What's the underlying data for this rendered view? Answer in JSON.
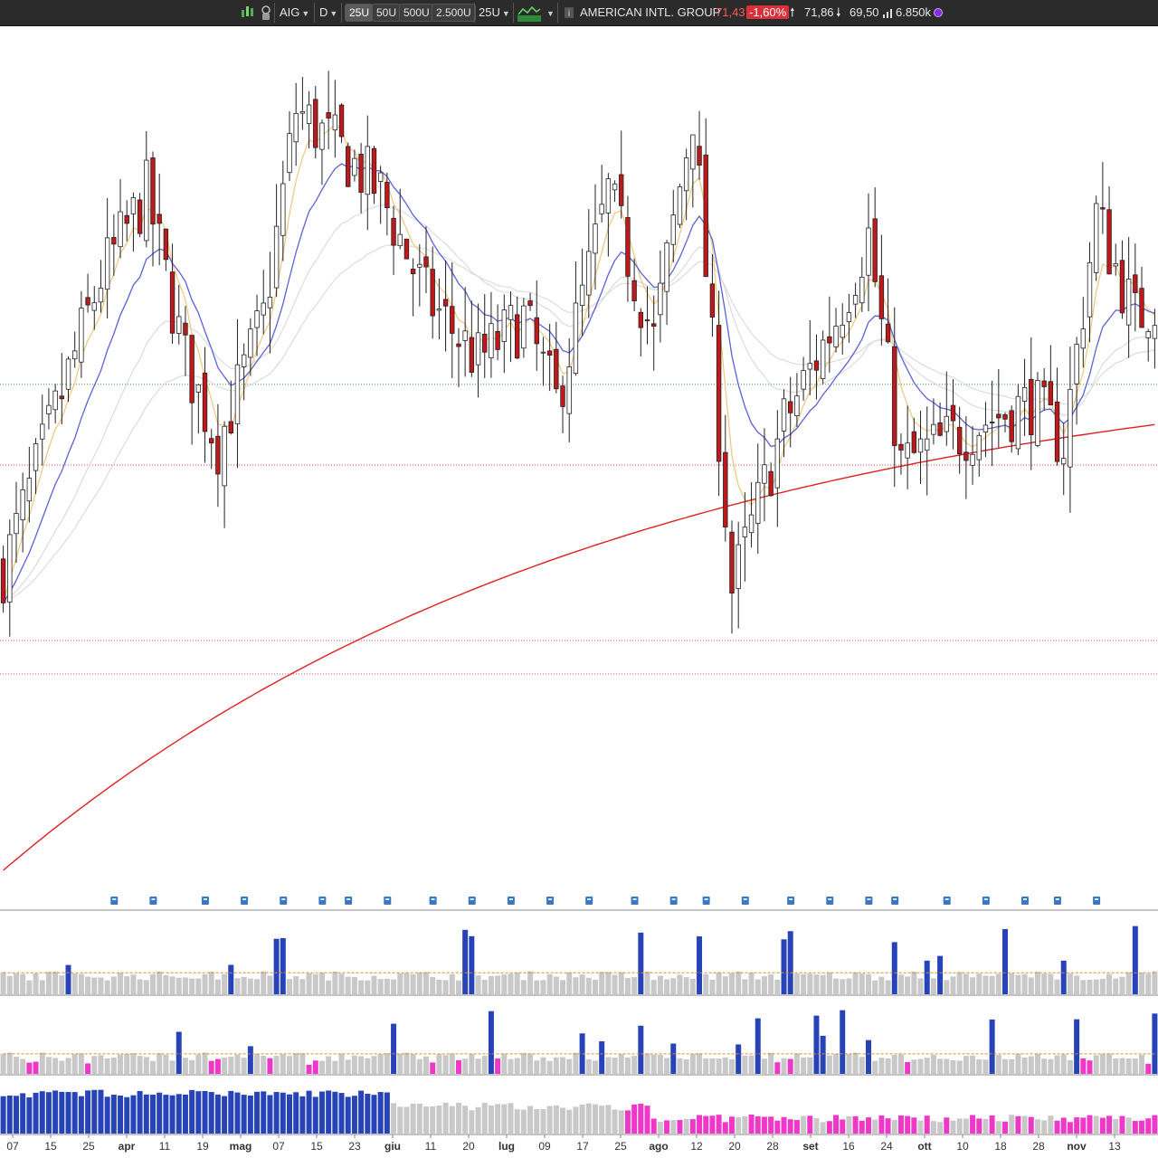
{
  "toolbar": {
    "symbol": "AIG",
    "period": "D",
    "scales": [
      "25U",
      "50U",
      "500U",
      "2.500U"
    ],
    "active_scale": "25U",
    "scale_select": "25U",
    "company": "AMERICAN INTL. GROUP",
    "last": "71,43",
    "change": "-1,60%",
    "high": "71,86",
    "low": "69,50",
    "volume": "6.850k",
    "icons": [
      "candles-icon",
      "bag-icon",
      "chevron-down-icon",
      "chevron-down-icon",
      "chevron-down-icon",
      "chart-style-icon",
      "chevron-down-icon",
      "info-icon",
      "arrow-up-icon",
      "arrow-down-icon",
      "volume-bars-icon",
      "status-dot-icon"
    ],
    "colors": {
      "change_bg": "#d9303a",
      "price": "#ff5a5a",
      "status_dot": "#8a2be2"
    }
  },
  "axis": {
    "x_labels": [
      {
        "text": "07",
        "bold": false
      },
      {
        "text": "15",
        "bold": false
      },
      {
        "text": "25",
        "bold": false
      },
      {
        "text": "apr",
        "bold": true
      },
      {
        "text": "11",
        "bold": false
      },
      {
        "text": "19",
        "bold": false
      },
      {
        "text": "mag",
        "bold": true
      },
      {
        "text": "07",
        "bold": false
      },
      {
        "text": "15",
        "bold": false
      },
      {
        "text": "23",
        "bold": false
      },
      {
        "text": "giu",
        "bold": true
      },
      {
        "text": "11",
        "bold": false
      },
      {
        "text": "20",
        "bold": false
      },
      {
        "text": "lug",
        "bold": true
      },
      {
        "text": "09",
        "bold": false
      },
      {
        "text": "17",
        "bold": false
      },
      {
        "text": "25",
        "bold": false
      },
      {
        "text": "ago",
        "bold": true
      },
      {
        "text": "12",
        "bold": false
      },
      {
        "text": "20",
        "bold": false
      },
      {
        "text": "28",
        "bold": false
      },
      {
        "text": "set",
        "bold": true
      },
      {
        "text": "16",
        "bold": false
      },
      {
        "text": "24",
        "bold": false
      },
      {
        "text": "ott",
        "bold": true
      },
      {
        "text": "10",
        "bold": false
      },
      {
        "text": "18",
        "bold": false
      },
      {
        "text": "28",
        "bold": false
      },
      {
        "text": "nov",
        "bold": true
      },
      {
        "text": "13",
        "bold": false
      }
    ]
  },
  "chart_data": {
    "type": "candlestick",
    "symbol": "AIG",
    "colors": {
      "down": "#c0181b",
      "up": "#ffffff",
      "ema_fast": "#f2c57a",
      "ema_mid": "#5b62d9",
      "ma_slow": "#e02020",
      "sma_grey": "#dcdcdc",
      "vol_up": "#2743b8",
      "vol_neutral": "#c8c8c8",
      "vol_down": "#f038c8",
      "avg_line": "#e08a2a"
    },
    "y_range": [
      59,
      80
    ],
    "reference_levels": [
      71.43,
      69.5,
      65.3,
      64.5
    ],
    "sessions": 178,
    "seed": 7,
    "volume_panels": 3,
    "event_markers": 26
  }
}
